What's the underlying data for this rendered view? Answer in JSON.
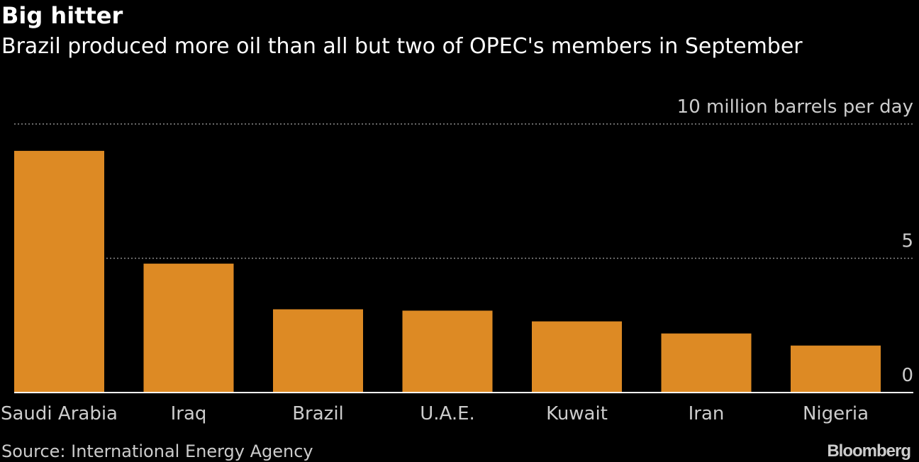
{
  "chart_data": {
    "type": "bar",
    "title": "Big hitter",
    "subtitle": "Brazil produced more oil than all but two of OPEC's members in September",
    "unit_label": "10 million barrels per day",
    "categories": [
      "Saudi Arabia",
      "Iraq",
      "Brazil",
      "U.A.E.",
      "Kuwait",
      "Iran",
      "Nigeria"
    ],
    "values": [
      9.0,
      4.8,
      3.1,
      3.05,
      2.65,
      2.2,
      1.75
    ],
    "ylim": [
      0,
      10
    ],
    "yticks": [
      {
        "value": 10,
        "label": "10 million barrels per day"
      },
      {
        "value": 5,
        "label": "5"
      },
      {
        "value": 0,
        "label": "0"
      }
    ],
    "bar_color": "#dd8a24",
    "grid": true,
    "source": "Source: International Energy Agency",
    "logo": "Bloomberg"
  }
}
